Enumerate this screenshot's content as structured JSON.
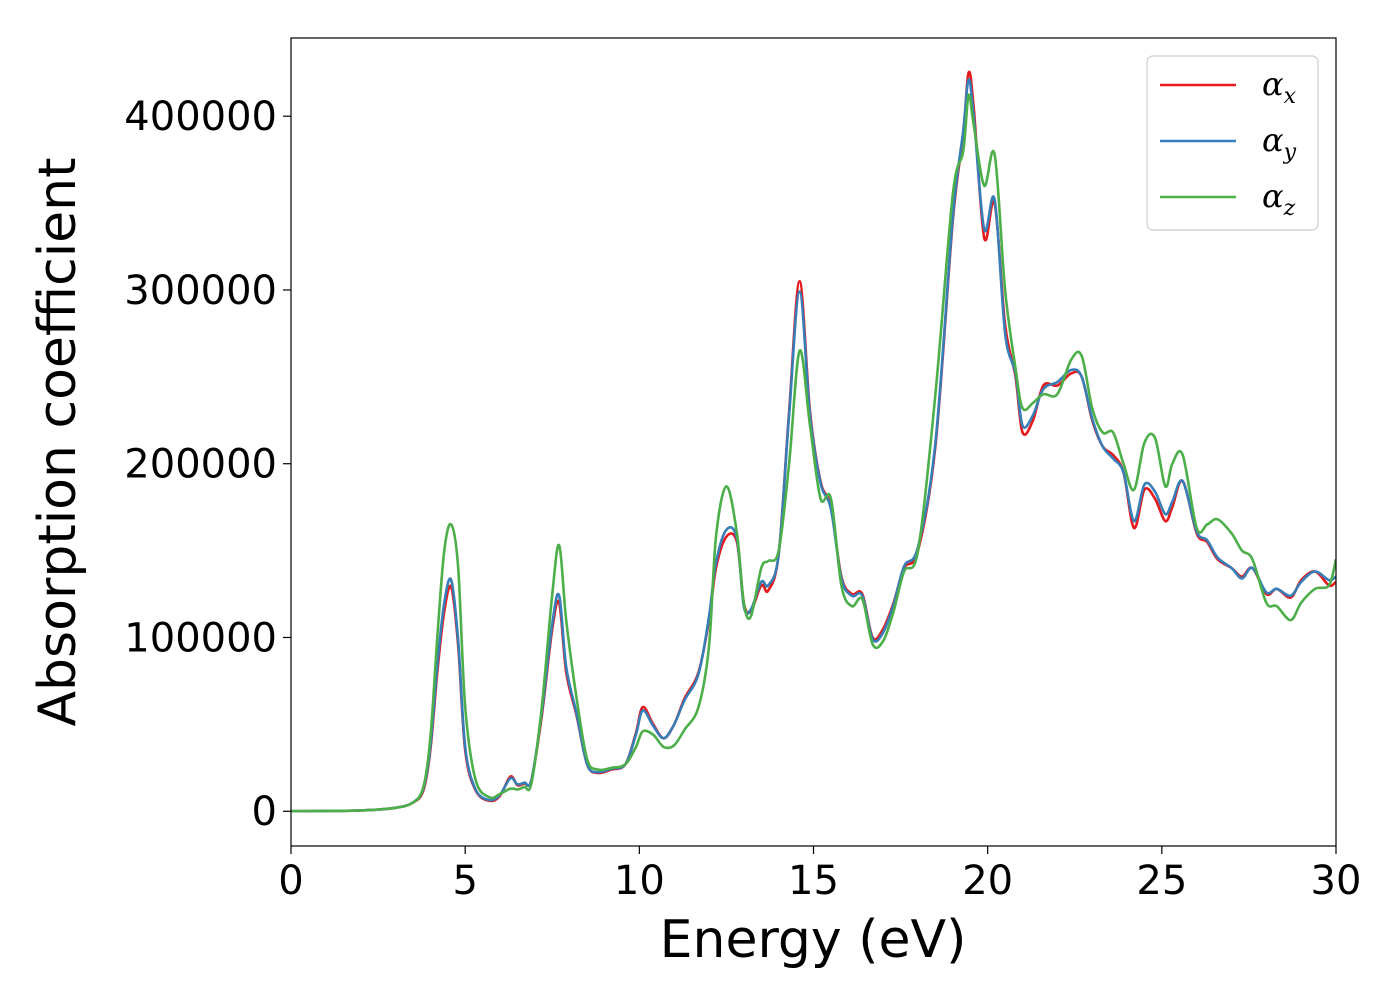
{
  "chart_data": {
    "type": "line",
    "xlabel": "Energy (eV)",
    "ylabel": "Absorption coefficient",
    "xlim": [
      0,
      30
    ],
    "ylim": [
      -20000,
      445000
    ],
    "xticks": [
      0,
      5,
      10,
      15,
      20,
      25,
      30
    ],
    "xtick_labels": [
      "0",
      "5",
      "10",
      "15",
      "20",
      "25",
      "30"
    ],
    "yticks": [
      0,
      100000,
      200000,
      300000,
      400000
    ],
    "ytick_labels": [
      "0",
      "100000",
      "200000",
      "300000",
      "400000"
    ],
    "grid": false,
    "legend_position": "top-right",
    "series": [
      {
        "name_symbol": "α",
        "name_sub": "x",
        "color": "#e41a1c",
        "x": [
          0,
          2,
          3,
          3.5,
          3.8,
          4.0,
          4.2,
          4.4,
          4.6,
          4.8,
          5.0,
          5.3,
          5.7,
          6.0,
          6.3,
          6.5,
          6.7,
          6.9,
          7.2,
          7.5,
          7.7,
          7.9,
          8.2,
          8.5,
          8.8,
          9.2,
          9.6,
          9.9,
          10.1,
          10.4,
          10.7,
          11.0,
          11.3,
          11.7,
          12.0,
          12.2,
          12.5,
          12.8,
          13.0,
          13.2,
          13.5,
          13.7,
          14.0,
          14.3,
          14.6,
          14.9,
          15.2,
          15.5,
          15.8,
          16.1,
          16.4,
          16.7,
          17.0,
          17.3,
          17.6,
          18.0,
          18.5,
          19.0,
          19.3,
          19.45,
          19.6,
          19.9,
          20.2,
          20.5,
          20.8,
          21.0,
          21.3,
          21.6,
          22.0,
          22.4,
          22.7,
          23.0,
          23.3,
          23.6,
          23.9,
          24.2,
          24.5,
          24.8,
          25.1,
          25.3,
          25.6,
          26.0,
          26.3,
          26.6,
          27.0,
          27.3,
          27.6,
          28.0,
          28.3,
          28.7,
          29.0,
          29.4,
          29.8,
          30.0
        ],
        "y": [
          0,
          500,
          2000,
          5000,
          12000,
          35000,
          80000,
          115000,
          129000,
          95000,
          35000,
          12000,
          6000,
          9000,
          20000,
          15000,
          16000,
          18000,
          55000,
          105000,
          120000,
          80000,
          55000,
          27000,
          22000,
          24000,
          27000,
          45000,
          60000,
          50000,
          42000,
          50000,
          65000,
          80000,
          110000,
          140000,
          158000,
          155000,
          120000,
          115000,
          130000,
          127000,
          148000,
          230000,
          305000,
          230000,
          190000,
          175000,
          135000,
          125000,
          125000,
          100000,
          105000,
          120000,
          140000,
          150000,
          210000,
          340000,
          390000,
          425000,
          405000,
          330000,
          350000,
          280000,
          250000,
          218000,
          225000,
          245000,
          245000,
          252000,
          250000,
          225000,
          210000,
          205000,
          195000,
          163000,
          185000,
          180000,
          167000,
          175000,
          190000,
          160000,
          155000,
          145000,
          140000,
          135000,
          140000,
          125000,
          128000,
          123000,
          133000,
          138000,
          130000,
          132000
        ]
      },
      {
        "name_symbol": "α",
        "name_sub": "y",
        "color": "#377eb8",
        "x": [
          0,
          2,
          3,
          3.5,
          3.8,
          4.0,
          4.2,
          4.4,
          4.6,
          4.8,
          5.0,
          5.3,
          5.7,
          6.0,
          6.3,
          6.5,
          6.7,
          6.9,
          7.2,
          7.5,
          7.7,
          7.9,
          8.2,
          8.5,
          8.8,
          9.2,
          9.6,
          9.9,
          10.1,
          10.4,
          10.7,
          11.0,
          11.3,
          11.7,
          12.0,
          12.2,
          12.5,
          12.8,
          13.0,
          13.2,
          13.5,
          13.7,
          14.0,
          14.3,
          14.6,
          14.9,
          15.2,
          15.5,
          15.8,
          16.1,
          16.4,
          16.7,
          17.0,
          17.3,
          17.6,
          18.0,
          18.5,
          19.0,
          19.3,
          19.45,
          19.6,
          19.9,
          20.2,
          20.5,
          20.8,
          21.0,
          21.3,
          21.6,
          22.0,
          22.4,
          22.7,
          23.0,
          23.3,
          23.6,
          23.9,
          24.2,
          24.5,
          24.8,
          25.1,
          25.3,
          25.6,
          26.0,
          26.3,
          26.6,
          27.0,
          27.3,
          27.6,
          28.0,
          28.3,
          28.7,
          29.0,
          29.4,
          29.8,
          30.0
        ],
        "y": [
          0,
          500,
          2000,
          5000,
          13000,
          37000,
          84000,
          120000,
          133000,
          98000,
          37000,
          12500,
          6500,
          9500,
          19000,
          15500,
          16500,
          18000,
          57000,
          108000,
          124000,
          83000,
          56000,
          27000,
          22500,
          24500,
          27000,
          44000,
          58000,
          49000,
          42000,
          50000,
          64000,
          79000,
          112000,
          143000,
          162000,
          157000,
          118000,
          116000,
          132000,
          130000,
          148000,
          228000,
          299000,
          228000,
          189000,
          174000,
          134000,
          124000,
          124000,
          99000,
          103000,
          119000,
          141000,
          152000,
          212000,
          342000,
          392000,
          421000,
          400000,
          335000,
          352000,
          275000,
          252000,
          222000,
          228000,
          243000,
          247000,
          254000,
          250000,
          226000,
          210000,
          203000,
          195000,
          167000,
          188000,
          184000,
          171000,
          178000,
          190000,
          161000,
          156000,
          146000,
          140000,
          134000,
          140000,
          126000,
          128000,
          124000,
          132000,
          138000,
          133000,
          135000
        ]
      },
      {
        "name_symbol": "α",
        "name_sub": "z",
        "color": "#4daf4a",
        "x": [
          0,
          2,
          3,
          3.5,
          3.8,
          4.0,
          4.2,
          4.4,
          4.6,
          4.8,
          5.0,
          5.3,
          5.7,
          6.0,
          6.3,
          6.5,
          6.7,
          6.9,
          7.2,
          7.5,
          7.7,
          7.9,
          8.2,
          8.5,
          8.8,
          9.2,
          9.6,
          9.9,
          10.1,
          10.4,
          10.7,
          11.0,
          11.3,
          11.7,
          12.0,
          12.2,
          12.5,
          12.8,
          13.0,
          13.2,
          13.5,
          13.7,
          14.0,
          14.3,
          14.6,
          14.9,
          15.2,
          15.5,
          15.8,
          16.1,
          16.4,
          16.7,
          17.0,
          17.3,
          17.6,
          18.0,
          18.5,
          19.0,
          19.3,
          19.45,
          19.6,
          19.9,
          20.2,
          20.5,
          20.8,
          21.0,
          21.3,
          21.6,
          22.0,
          22.4,
          22.7,
          23.0,
          23.3,
          23.6,
          23.9,
          24.2,
          24.5,
          24.8,
          25.1,
          25.3,
          25.6,
          26.0,
          26.3,
          26.6,
          27.0,
          27.3,
          27.6,
          28.0,
          28.3,
          28.7,
          29.0,
          29.4,
          29.8,
          30.0
        ],
        "y": [
          0,
          500,
          2000,
          5000,
          14000,
          42000,
          100000,
          150000,
          165000,
          140000,
          60000,
          18000,
          8000,
          10000,
          13000,
          12500,
          14000,
          16000,
          60000,
          125000,
          153000,
          110000,
          65000,
          30000,
          24000,
          25000,
          27000,
          37000,
          46000,
          44000,
          37000,
          38000,
          47000,
          60000,
          95000,
          158000,
          187000,
          160000,
          120000,
          112000,
          140000,
          144000,
          150000,
          200000,
          265000,
          222000,
          180000,
          180000,
          130000,
          118000,
          122000,
          96000,
          98000,
          115000,
          138000,
          150000,
          240000,
          355000,
          380000,
          412000,
          395000,
          360000,
          378000,
          300000,
          255000,
          232000,
          235000,
          240000,
          240000,
          260000,
          262000,
          232000,
          218000,
          218000,
          200000,
          185000,
          212000,
          215000,
          187000,
          200000,
          205000,
          163000,
          165000,
          168000,
          160000,
          150000,
          145000,
          120000,
          118000,
          110000,
          120000,
          128000,
          130000,
          145000
        ]
      }
    ]
  }
}
